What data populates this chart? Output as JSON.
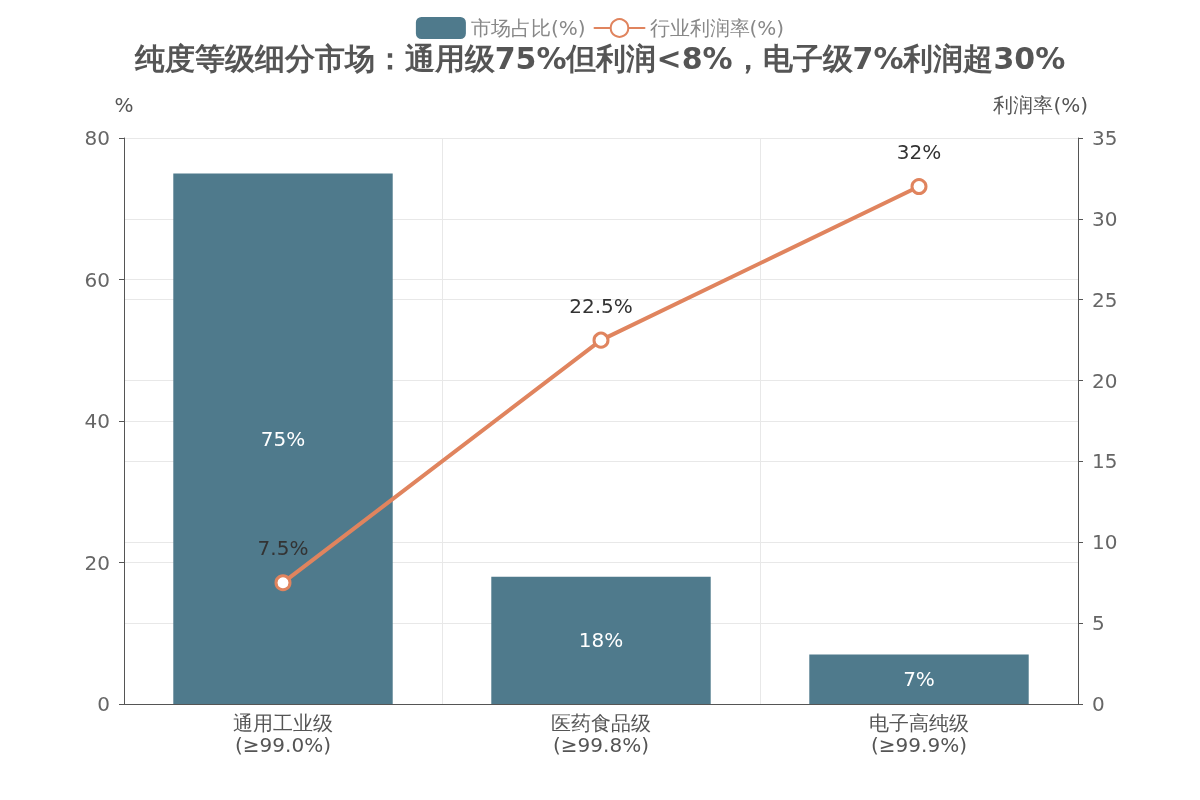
{
  "chart_data": {
    "type": "bar",
    "title": "纯度等级细分市场：通用级75%但利润<8%，电子级7%利润超30%",
    "ylabel": "%",
    "y2label": "利润率(%)",
    "categories": [
      "通用工业级\n(≥99.0%)",
      "医药食品级\n(≥99.8%)",
      "电子高纯级\n(≥99.9%)"
    ],
    "series": [
      {
        "name": "市场占比(%)",
        "color": "#4f7a8c",
        "values": [
          75,
          18,
          7
        ],
        "value_labels": [
          "75%",
          "18%",
          "7%"
        ]
      },
      {
        "name": "行业利润率(%)",
        "type": "line",
        "axis": "y2",
        "color": "#e0845e",
        "values": [
          7.5,
          22.5,
          32
        ],
        "value_labels": [
          "7.5%",
          "22.5%",
          "32%"
        ]
      }
    ],
    "ylim": [
      0,
      80
    ],
    "yticks": [
      0,
      20,
      40,
      60,
      80
    ],
    "y2lim": [
      0,
      35
    ],
    "y2ticks": [
      0,
      5,
      10,
      15,
      20,
      25,
      30,
      35
    ],
    "grid": true,
    "legend": "top",
    "marker": "circle",
    "line_style": "solid"
  }
}
